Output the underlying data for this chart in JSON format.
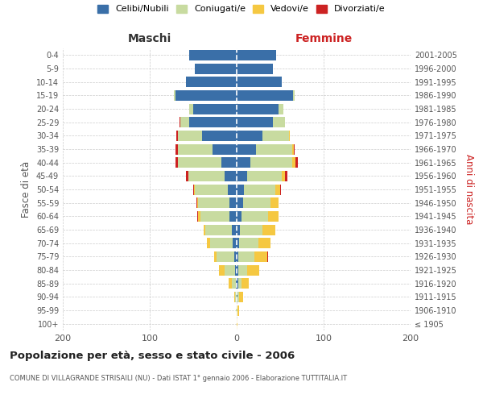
{
  "age_groups": [
    "100+",
    "95-99",
    "90-94",
    "85-89",
    "80-84",
    "75-79",
    "70-74",
    "65-69",
    "60-64",
    "55-59",
    "50-54",
    "45-49",
    "40-44",
    "35-39",
    "30-34",
    "25-29",
    "20-24",
    "15-19",
    "10-14",
    "5-9",
    "0-4"
  ],
  "birth_years": [
    "≤ 1905",
    "1906-1910",
    "1911-1915",
    "1916-1920",
    "1921-1925",
    "1926-1930",
    "1931-1935",
    "1936-1940",
    "1941-1945",
    "1946-1950",
    "1951-1955",
    "1956-1960",
    "1961-1965",
    "1966-1970",
    "1971-1975",
    "1976-1980",
    "1981-1985",
    "1986-1990",
    "1991-1995",
    "1996-2000",
    "2001-2005"
  ],
  "male": {
    "celibi": [
      0,
      0,
      0,
      1,
      2,
      3,
      5,
      6,
      8,
      8,
      10,
      14,
      18,
      28,
      40,
      55,
      50,
      70,
      58,
      48,
      55
    ],
    "coniugati": [
      0,
      1,
      2,
      5,
      12,
      20,
      26,
      30,
      34,
      36,
      38,
      42,
      50,
      40,
      28,
      10,
      5,
      2,
      0,
      0,
      0
    ],
    "vedovi": [
      0,
      0,
      1,
      3,
      6,
      3,
      3,
      2,
      2,
      1,
      1,
      0,
      0,
      0,
      0,
      0,
      0,
      0,
      0,
      0,
      0
    ],
    "divorziati": [
      0,
      0,
      0,
      0,
      0,
      0,
      0,
      0,
      1,
      1,
      1,
      2,
      2,
      2,
      1,
      1,
      0,
      0,
      0,
      0,
      0
    ]
  },
  "female": {
    "nubili": [
      0,
      0,
      1,
      2,
      2,
      2,
      3,
      4,
      6,
      7,
      8,
      12,
      16,
      22,
      30,
      42,
      48,
      65,
      52,
      42,
      45
    ],
    "coniugate": [
      0,
      1,
      2,
      4,
      10,
      18,
      22,
      26,
      30,
      32,
      36,
      40,
      48,
      42,
      30,
      14,
      6,
      2,
      0,
      0,
      0
    ],
    "vedove": [
      1,
      2,
      4,
      8,
      14,
      15,
      14,
      14,
      12,
      9,
      6,
      4,
      4,
      2,
      1,
      0,
      0,
      0,
      0,
      0,
      0
    ],
    "divorziate": [
      0,
      0,
      0,
      0,
      0,
      1,
      0,
      0,
      0,
      0,
      1,
      2,
      2,
      1,
      0,
      0,
      0,
      0,
      0,
      0,
      0
    ]
  },
  "colors": {
    "celibi": "#3a6fa8",
    "coniugati": "#c8dba0",
    "vedovi": "#f5c842",
    "divorziati": "#cc2222"
  },
  "xlim": 200,
  "title": "Popolazione per età, sesso e stato civile - 2006",
  "subtitle": "COMUNE DI VILLAGRANDE STRISAILI (NU) - Dati ISTAT 1° gennaio 2006 - Elaborazione TUTTITALIA.IT",
  "ylabel_left": "Fasce di età",
  "ylabel_right": "Anni di nascita",
  "xlabel_left": "Maschi",
  "xlabel_right": "Femmine",
  "legend_labels": [
    "Celibi/Nubili",
    "Coniugati/e",
    "Vedovi/e",
    "Divorziati/e"
  ],
  "background_color": "#ffffff",
  "grid_color": "#cccccc"
}
